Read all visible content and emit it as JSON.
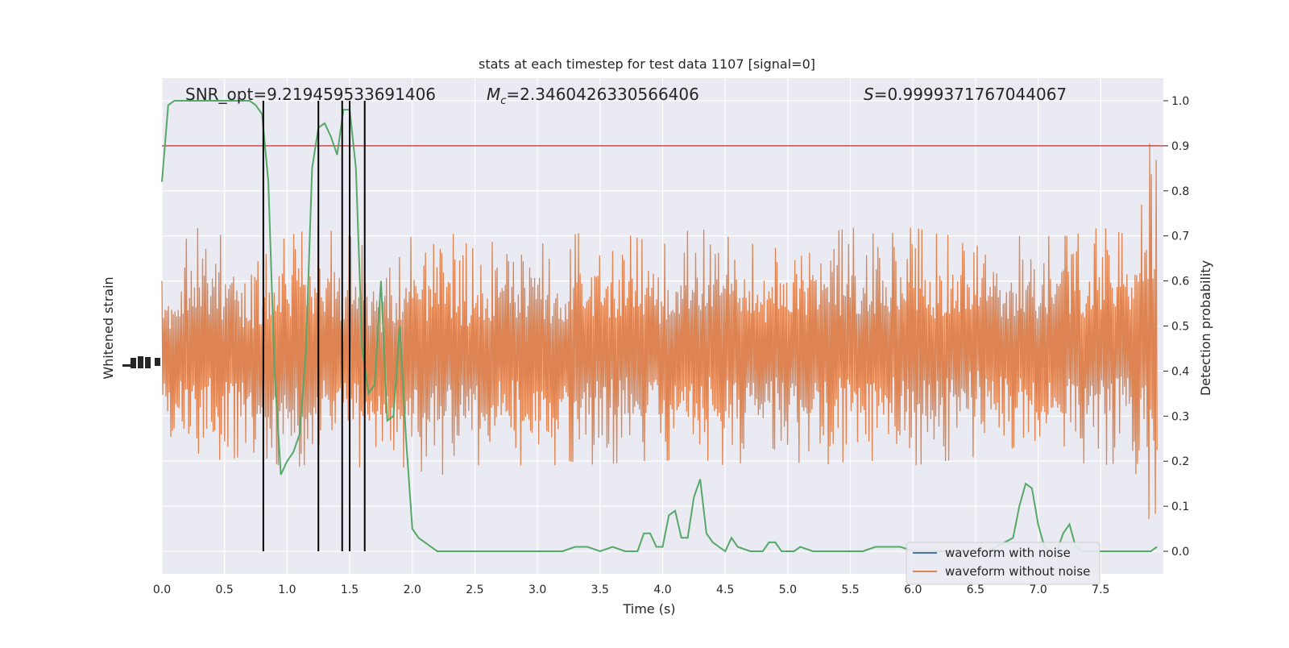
{
  "chart_data": {
    "type": "line",
    "title": "stats at each timestep for test data 1107 [signal=0]",
    "xlabel": "Time (s)",
    "ylabel_left": "Whitened strain",
    "ylabel_right": "Detection probability",
    "xlim": [
      0.0,
      8.0
    ],
    "ylim_right": [
      -0.05,
      1.05
    ],
    "xticks": [
      "0.0",
      "0.5",
      "1.0",
      "1.5",
      "2.0",
      "2.5",
      "3.0",
      "3.5",
      "4.0",
      "4.5",
      "5.0",
      "5.5",
      "6.0",
      "6.5",
      "7.0",
      "7.5"
    ],
    "yticks_right": [
      "0.0",
      "0.1",
      "0.2",
      "0.3",
      "0.4",
      "0.5",
      "0.6",
      "0.7",
      "0.8",
      "0.9",
      "1.0"
    ],
    "grid": true,
    "legend_position": "lower-right",
    "annotations": {
      "snr": "SNR_opt=9.219459533691406",
      "mc_symbol": "M",
      "mc_subscript": "c",
      "mc_value": "=2.3460426330566406",
      "s_symbol": "S",
      "s_value": "=0.9999371767044067"
    },
    "threshold": 0.9,
    "event_lines": [
      0.81,
      1.25,
      1.44,
      1.5,
      1.62
    ],
    "series": [
      {
        "name": "waveform with noise",
        "color": "#4c72b0"
      },
      {
        "name": "waveform without noise",
        "color": "#dd8452"
      }
    ],
    "noise_envelope": {
      "times": [
        0.0,
        0.25,
        0.5,
        0.75,
        1.0,
        1.25,
        1.5,
        1.75,
        2.0,
        2.25,
        2.5,
        2.75,
        3.0,
        3.25,
        3.5,
        3.75,
        4.0,
        4.25,
        4.5,
        4.75,
        5.0,
        5.25,
        5.5,
        5.75,
        6.0,
        6.25,
        6.5,
        6.75,
        7.0,
        7.25,
        7.5,
        7.75,
        7.95
      ],
      "upper": [
        0.6,
        0.72,
        0.7,
        0.64,
        0.7,
        0.72,
        0.7,
        0.65,
        0.7,
        0.72,
        0.67,
        0.7,
        0.68,
        0.7,
        0.72,
        0.7,
        0.68,
        0.72,
        0.7,
        0.68,
        0.72,
        0.7,
        0.72,
        0.7,
        0.72,
        0.7,
        0.72,
        0.7,
        0.7,
        0.7,
        0.72,
        0.7,
        0.99
      ],
      "lower": [
        0.24,
        0.22,
        0.2,
        0.22,
        0.18,
        0.2,
        0.18,
        0.2,
        0.18,
        0.17,
        0.19,
        0.2,
        0.18,
        0.2,
        0.19,
        0.2,
        0.2,
        0.21,
        0.19,
        0.2,
        0.2,
        0.19,
        0.2,
        0.2,
        0.19,
        0.2,
        0.21,
        0.2,
        0.2,
        0.2,
        0.19,
        0.2,
        0.01
      ]
    },
    "detection_probability": {
      "color": "#55a868",
      "x": [
        0.0,
        0.05,
        0.1,
        0.2,
        0.3,
        0.4,
        0.5,
        0.6,
        0.7,
        0.75,
        0.8,
        0.85,
        0.9,
        0.95,
        1.0,
        1.05,
        1.1,
        1.15,
        1.2,
        1.25,
        1.3,
        1.35,
        1.4,
        1.45,
        1.5,
        1.55,
        1.6,
        1.65,
        1.7,
        1.75,
        1.8,
        1.85,
        1.9,
        1.95,
        2.0,
        2.05,
        2.1,
        2.15,
        2.2,
        2.25,
        2.3,
        2.35,
        2.4,
        2.5,
        2.6,
        2.8,
        3.0,
        3.1,
        3.2,
        3.3,
        3.4,
        3.5,
        3.6,
        3.7,
        3.8,
        3.85,
        3.9,
        3.95,
        4.0,
        4.05,
        4.1,
        4.15,
        4.2,
        4.25,
        4.3,
        4.35,
        4.4,
        4.45,
        4.5,
        4.55,
        4.6,
        4.7,
        4.8,
        4.85,
        4.9,
        4.95,
        5.0,
        5.05,
        5.1,
        5.2,
        5.3,
        5.4,
        5.5,
        5.6,
        5.7,
        5.8,
        5.9,
        6.0,
        6.2,
        6.4,
        6.6,
        6.8,
        6.85,
        6.9,
        6.95,
        7.0,
        7.05,
        7.1,
        7.15,
        7.2,
        7.25,
        7.3,
        7.35,
        7.4,
        7.5,
        7.6,
        7.7,
        7.8,
        7.85,
        7.9,
        7.95
      ],
      "y": [
        0.82,
        0.99,
        1.0,
        1.0,
        1.0,
        1.0,
        1.0,
        1.0,
        1.0,
        0.99,
        0.97,
        0.82,
        0.4,
        0.17,
        0.2,
        0.22,
        0.26,
        0.44,
        0.85,
        0.94,
        0.95,
        0.92,
        0.88,
        0.98,
        0.98,
        0.85,
        0.45,
        0.35,
        0.37,
        0.6,
        0.29,
        0.3,
        0.5,
        0.25,
        0.05,
        0.03,
        0.02,
        0.01,
        0.0,
        0.0,
        0.0,
        0.0,
        0.0,
        0.0,
        0.0,
        0.0,
        0.0,
        0.0,
        0.0,
        0.01,
        0.01,
        0.0,
        0.01,
        0.0,
        0.0,
        0.04,
        0.04,
        0.01,
        0.01,
        0.08,
        0.09,
        0.03,
        0.03,
        0.12,
        0.16,
        0.04,
        0.02,
        0.01,
        0.0,
        0.03,
        0.01,
        0.0,
        0.0,
        0.02,
        0.02,
        0.0,
        0.0,
        0.0,
        0.01,
        0.0,
        0.0,
        0.0,
        0.0,
        0.0,
        0.01,
        0.01,
        0.01,
        0.0,
        0.0,
        0.0,
        0.0,
        0.03,
        0.1,
        0.15,
        0.14,
        0.06,
        0.01,
        0.0,
        0.0,
        0.04,
        0.06,
        0.01,
        0.0,
        0.0,
        0.0,
        0.0,
        0.0,
        0.0,
        0.0,
        0.0,
        0.01
      ]
    }
  }
}
